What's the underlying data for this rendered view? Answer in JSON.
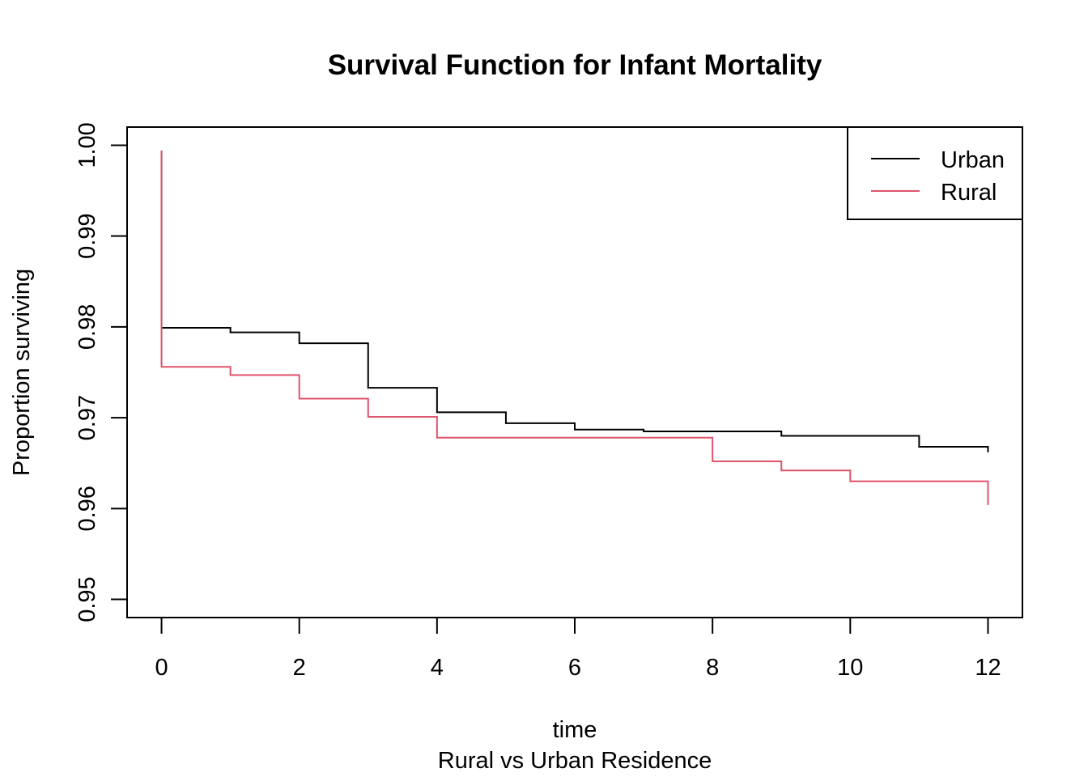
{
  "chart_data": {
    "type": "line",
    "step": true,
    "title": "Survival Function for Infant Mortality",
    "xlabel": "time",
    "sublabel": "Rural vs Urban Residence",
    "ylabel": "Proportion surviving",
    "xlim": [
      -0.5,
      12.5
    ],
    "ylim": [
      0.948,
      1.002
    ],
    "xticks": [
      0,
      2,
      4,
      6,
      8,
      10,
      12
    ],
    "yticks": [
      0.95,
      0.96,
      0.97,
      0.98,
      0.99,
      1.0
    ],
    "xtick_labels": [
      "0",
      "2",
      "4",
      "6",
      "8",
      "10",
      "12"
    ],
    "ytick_labels": [
      "0.95",
      "0.96",
      "0.97",
      "0.98",
      "0.99",
      "1.00"
    ],
    "legend_position": "top-right",
    "series": [
      {
        "name": "Urban",
        "color": "#000000",
        "x": [
          0,
          0,
          1,
          2,
          3,
          4,
          5,
          6,
          7,
          9,
          11,
          12
        ],
        "y": [
          0.9994,
          0.9799,
          0.9794,
          0.9782,
          0.9733,
          0.9706,
          0.9694,
          0.9687,
          0.9685,
          0.968,
          0.9668,
          0.9662
        ]
      },
      {
        "name": "Rural",
        "color": "#DF536B",
        "x": [
          0,
          0,
          1,
          2,
          3,
          4,
          8,
          9,
          10,
          12
        ],
        "y": [
          0.9994,
          0.9756,
          0.9747,
          0.9721,
          0.9701,
          0.9678,
          0.9652,
          0.9642,
          0.963,
          0.9604
        ]
      }
    ]
  }
}
